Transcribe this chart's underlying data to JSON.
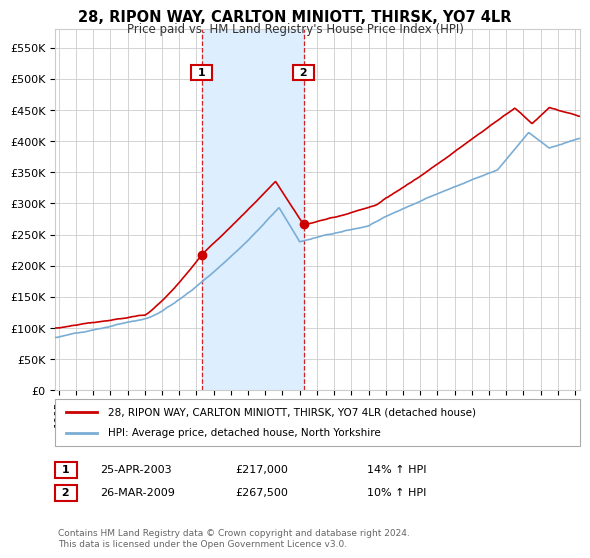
{
  "title": "28, RIPON WAY, CARLTON MINIOTT, THIRSK, YO7 4LR",
  "subtitle": "Price paid vs. HM Land Registry's House Price Index (HPI)",
  "ylabel_ticks": [
    "£0",
    "£50K",
    "£100K",
    "£150K",
    "£200K",
    "£250K",
    "£300K",
    "£350K",
    "£400K",
    "£450K",
    "£500K",
    "£550K"
  ],
  "ytick_values": [
    0,
    50000,
    100000,
    150000,
    200000,
    250000,
    300000,
    350000,
    400000,
    450000,
    500000,
    550000
  ],
  "ylim": [
    0,
    580000
  ],
  "xlim_start": 1994.8,
  "xlim_end": 2025.3,
  "purchase1_x": 2003.31,
  "purchase1_y": 217000,
  "purchase1_label": "1",
  "purchase1_date": "25-APR-2003",
  "purchase1_price": "£217,000",
  "purchase1_hpi": "14% ↑ HPI",
  "purchase2_x": 2009.24,
  "purchase2_y": 267500,
  "purchase2_label": "2",
  "purchase2_date": "26-MAR-2009",
  "purchase2_price": "£267,500",
  "purchase2_hpi": "10% ↑ HPI",
  "line_color_property": "#cc0000",
  "line_color_hpi": "#7aadd4",
  "shade_color": "#ddeeff",
  "vline_color": "#cc0000",
  "grid_color": "#cccccc",
  "bg_color": "#ffffff",
  "legend_label1": "28, RIPON WAY, CARLTON MINIOTT, THIRSK, YO7 4LR (detached house)",
  "legend_label2": "HPI: Average price, detached house, North Yorkshire",
  "footer": "Contains HM Land Registry data © Crown copyright and database right 2024.\nThis data is licensed under the Open Government Licence v3.0.",
  "xtick_years": [
    1995,
    1996,
    1997,
    1998,
    1999,
    2000,
    2001,
    2002,
    2003,
    2004,
    2005,
    2006,
    2007,
    2008,
    2009,
    2010,
    2011,
    2012,
    2013,
    2014,
    2015,
    2016,
    2017,
    2018,
    2019,
    2020,
    2021,
    2022,
    2023,
    2024,
    2025
  ]
}
